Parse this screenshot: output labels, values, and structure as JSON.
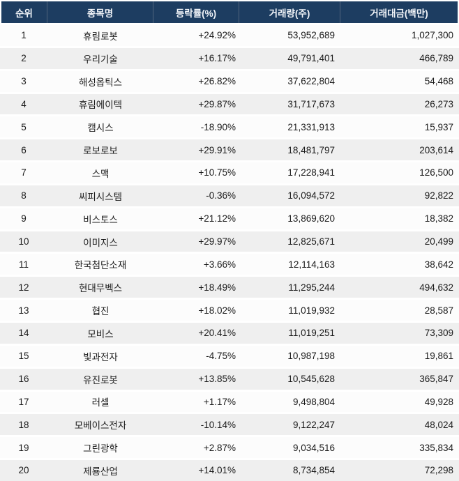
{
  "chart_data": {
    "type": "table",
    "title": "",
    "columns": [
      "순위",
      "종목명",
      "등락률(%)",
      "거래량(주)",
      "거래대금(백만)"
    ],
    "rows": [
      [
        "1",
        "휴림로봇",
        "+24.92%",
        "53,952,689",
        "1,027,300"
      ],
      [
        "2",
        "우리기술",
        "+16.17%",
        "49,791,401",
        "466,789"
      ],
      [
        "3",
        "해성옵틱스",
        "+26.82%",
        "37,622,804",
        "54,468"
      ],
      [
        "4",
        "휴림에이텍",
        "+29.87%",
        "31,717,673",
        "26,273"
      ],
      [
        "5",
        "캠시스",
        "-18.90%",
        "21,331,913",
        "15,937"
      ],
      [
        "6",
        "로보로보",
        "+29.91%",
        "18,481,797",
        "203,614"
      ],
      [
        "7",
        "스맥",
        "+10.75%",
        "17,228,941",
        "126,500"
      ],
      [
        "8",
        "씨피시스템",
        "-0.36%",
        "16,094,572",
        "92,822"
      ],
      [
        "9",
        "비스토스",
        "+21.12%",
        "13,869,620",
        "18,382"
      ],
      [
        "10",
        "이미지스",
        "+29.97%",
        "12,825,671",
        "20,499"
      ],
      [
        "11",
        "한국첨단소재",
        "+3.66%",
        "12,114,163",
        "38,642"
      ],
      [
        "12",
        "현대무벡스",
        "+18.49%",
        "11,295,244",
        "494,632"
      ],
      [
        "13",
        "협진",
        "+18.02%",
        "11,019,932",
        "28,587"
      ],
      [
        "14",
        "모비스",
        "+20.41%",
        "11,019,251",
        "73,309"
      ],
      [
        "15",
        "빛과전자",
        "-4.75%",
        "10,987,198",
        "19,861"
      ],
      [
        "16",
        "유진로봇",
        "+13.85%",
        "10,545,628",
        "365,847"
      ],
      [
        "17",
        "러셀",
        "+1.17%",
        "9,498,804",
        "49,928"
      ],
      [
        "18",
        "모베이스전자",
        "-10.14%",
        "9,122,247",
        "48,024"
      ],
      [
        "19",
        "그린광학",
        "+2.87%",
        "9,034,516",
        "335,834"
      ],
      [
        "20",
        "제룡산업",
        "+14.01%",
        "8,734,854",
        "72,298"
      ]
    ]
  },
  "colors": {
    "header_bg": "#1d3d61",
    "header_text": "#f2f5f9",
    "header_divider": "#51647d",
    "row_odd_bg": "#fcfcfc",
    "row_even_bg": "#efefef",
    "body_text": "#1a1a1a"
  }
}
